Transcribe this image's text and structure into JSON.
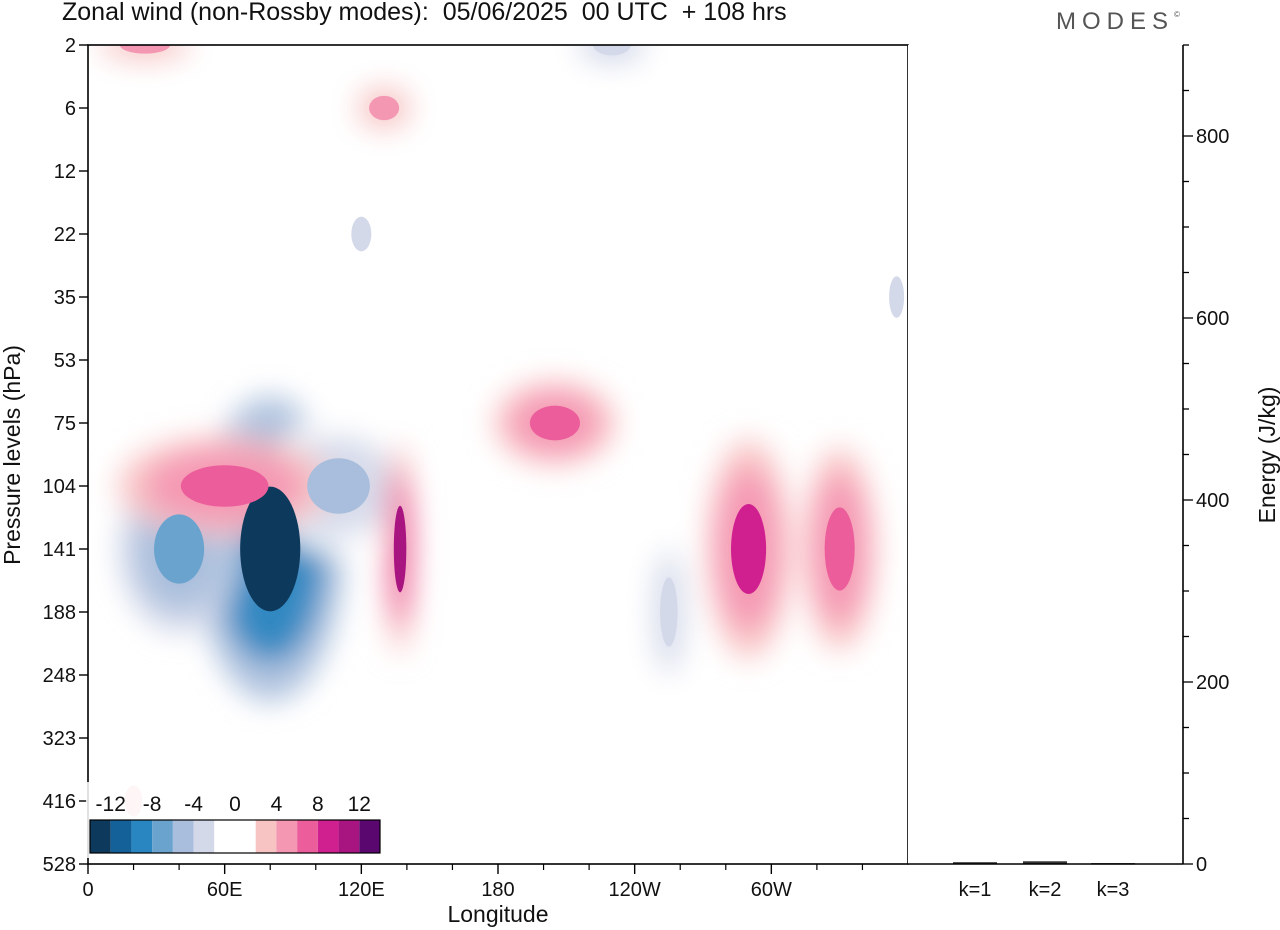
{
  "header": {
    "title": "Zonal wind (non-Rossby modes):  05/06/2025  00 UTC  + 108 hrs",
    "logo": "MODES",
    "logo_mark": "©"
  },
  "chart_data": [
    {
      "type": "heatmap",
      "xlabel": "Longitude",
      "ylabel": "Pressure levels (hPa)",
      "x_ticks": [
        "0",
        "60E",
        "120E",
        "180",
        "120W",
        "60W"
      ],
      "x_tick_degrees": [
        0,
        60,
        120,
        180,
        240,
        300
      ],
      "xlim": [
        0,
        360
      ],
      "y_ticks": [
        "2",
        "6",
        "12",
        "22",
        "35",
        "53",
        "75",
        "104",
        "141",
        "188",
        "248",
        "323",
        "416",
        "528"
      ],
      "y_scale": "pressure-levels (top 2 hPa to bottom 528 hPa)",
      "colorbar": {
        "labels": [
          "-12",
          "-8",
          "-4",
          "0",
          "4",
          "8",
          "12"
        ],
        "bin_edges": [
          -14,
          -12,
          -10,
          -8,
          -6,
          -4,
          -2,
          0,
          2,
          4,
          6,
          8,
          10,
          12,
          14
        ],
        "colors": [
          "#0d3a5c",
          "#14619a",
          "#2a86c1",
          "#6aa3cd",
          "#a8bedc",
          "#d4d9ea",
          "#ffffff",
          "#ffffff",
          "#f8c3c3",
          "#f497b3",
          "#ec5e9b",
          "#d02090",
          "#a81480",
          "#5a0870"
        ]
      },
      "features": [
        {
          "lon": 80,
          "level": "141",
          "value": -14,
          "lon_width": 48,
          "level_span": 3.6
        },
        {
          "lon": 40,
          "level": "141",
          "value": -7,
          "lon_width": 40,
          "level_span": 2.0
        },
        {
          "lon": 110,
          "level": "104",
          "value": -5,
          "lon_width": 50,
          "level_span": 1.6
        },
        {
          "lon": 60,
          "level": "104",
          "value": 6,
          "lon_width": 70,
          "level_span": 1.2
        },
        {
          "lon": 137,
          "level": "141",
          "value": 11,
          "lon_width": 10,
          "level_span": 2.5
        },
        {
          "lon": 290,
          "level": "141",
          "value": 8,
          "lon_width": 28,
          "level_span": 2.6
        },
        {
          "lon": 330,
          "level": "141",
          "value": 6,
          "lon_width": 24,
          "level_span": 2.4
        },
        {
          "lon": 205,
          "level": "75",
          "value": 6,
          "lon_width": 40,
          "level_span": 1.0
        },
        {
          "lon": 25,
          "level": "2",
          "value": 5,
          "lon_width": 40,
          "level_span": 0.5
        },
        {
          "lon": 130,
          "level": "6",
          "value": 5,
          "lon_width": 24,
          "level_span": 0.7
        },
        {
          "lon": 230,
          "level": "2",
          "value": -4,
          "lon_width": 30,
          "level_span": 0.6
        },
        {
          "lon": 255,
          "level": "188",
          "value": -4,
          "lon_width": 14,
          "level_span": 2.0
        },
        {
          "lon": 120,
          "level": "22",
          "value": -2.5,
          "lon_width": 16,
          "level_span": 1.0
        },
        {
          "lon": 20,
          "level": "416",
          "value": 2.5,
          "lon_width": 14,
          "level_span": 0.9
        },
        {
          "lon": 355,
          "level": "35",
          "value": -2.5,
          "lon_width": 12,
          "level_span": 1.2
        }
      ]
    },
    {
      "type": "bar",
      "categories": [
        "k=1",
        "k=2",
        "k=3"
      ],
      "values": [
        2,
        3,
        1
      ],
      "ylabel": "Energy (J/kg)",
      "ylim": [
        0,
        900
      ],
      "y_ticks": [
        0,
        200,
        400,
        600,
        800
      ]
    }
  ]
}
